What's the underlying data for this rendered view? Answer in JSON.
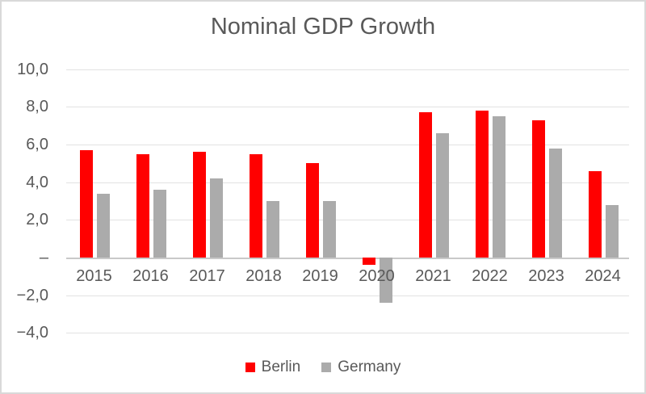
{
  "chart_data": {
    "type": "bar",
    "title": "Nominal GDP Growth",
    "categories": [
      "2015",
      "2016",
      "2017",
      "2018",
      "2019",
      "2020",
      "2021",
      "2022",
      "2023",
      "2024"
    ],
    "series": [
      {
        "name": "Berlin",
        "color": "#ff0000",
        "values": [
          5.7,
          5.5,
          5.6,
          5.5,
          5.0,
          -0.4,
          7.7,
          7.8,
          7.3,
          4.6
        ]
      },
      {
        "name": "Germany",
        "color": "#ababab",
        "values": [
          3.4,
          3.6,
          4.2,
          3.0,
          3.0,
          -2.4,
          6.6,
          7.5,
          5.8,
          2.8
        ]
      }
    ],
    "ylim": [
      -4,
      10
    ],
    "ytick_step": 2,
    "ytick_values": [
      10,
      8,
      6,
      4,
      2,
      0,
      -2,
      -4
    ],
    "ytick_labels": [
      "10,0",
      "8,0",
      "6,0",
      "4,0",
      "2,0",
      "–",
      "−2,0",
      "−4,0"
    ],
    "decimal_separator": ",",
    "grid": true,
    "legend_position": "bottom",
    "colors": {
      "text": "#595959",
      "gridline": "#e2e2e2",
      "axis_line": "#c9c9c9",
      "border": "#d9d9d9",
      "background": "#ffffff"
    }
  }
}
